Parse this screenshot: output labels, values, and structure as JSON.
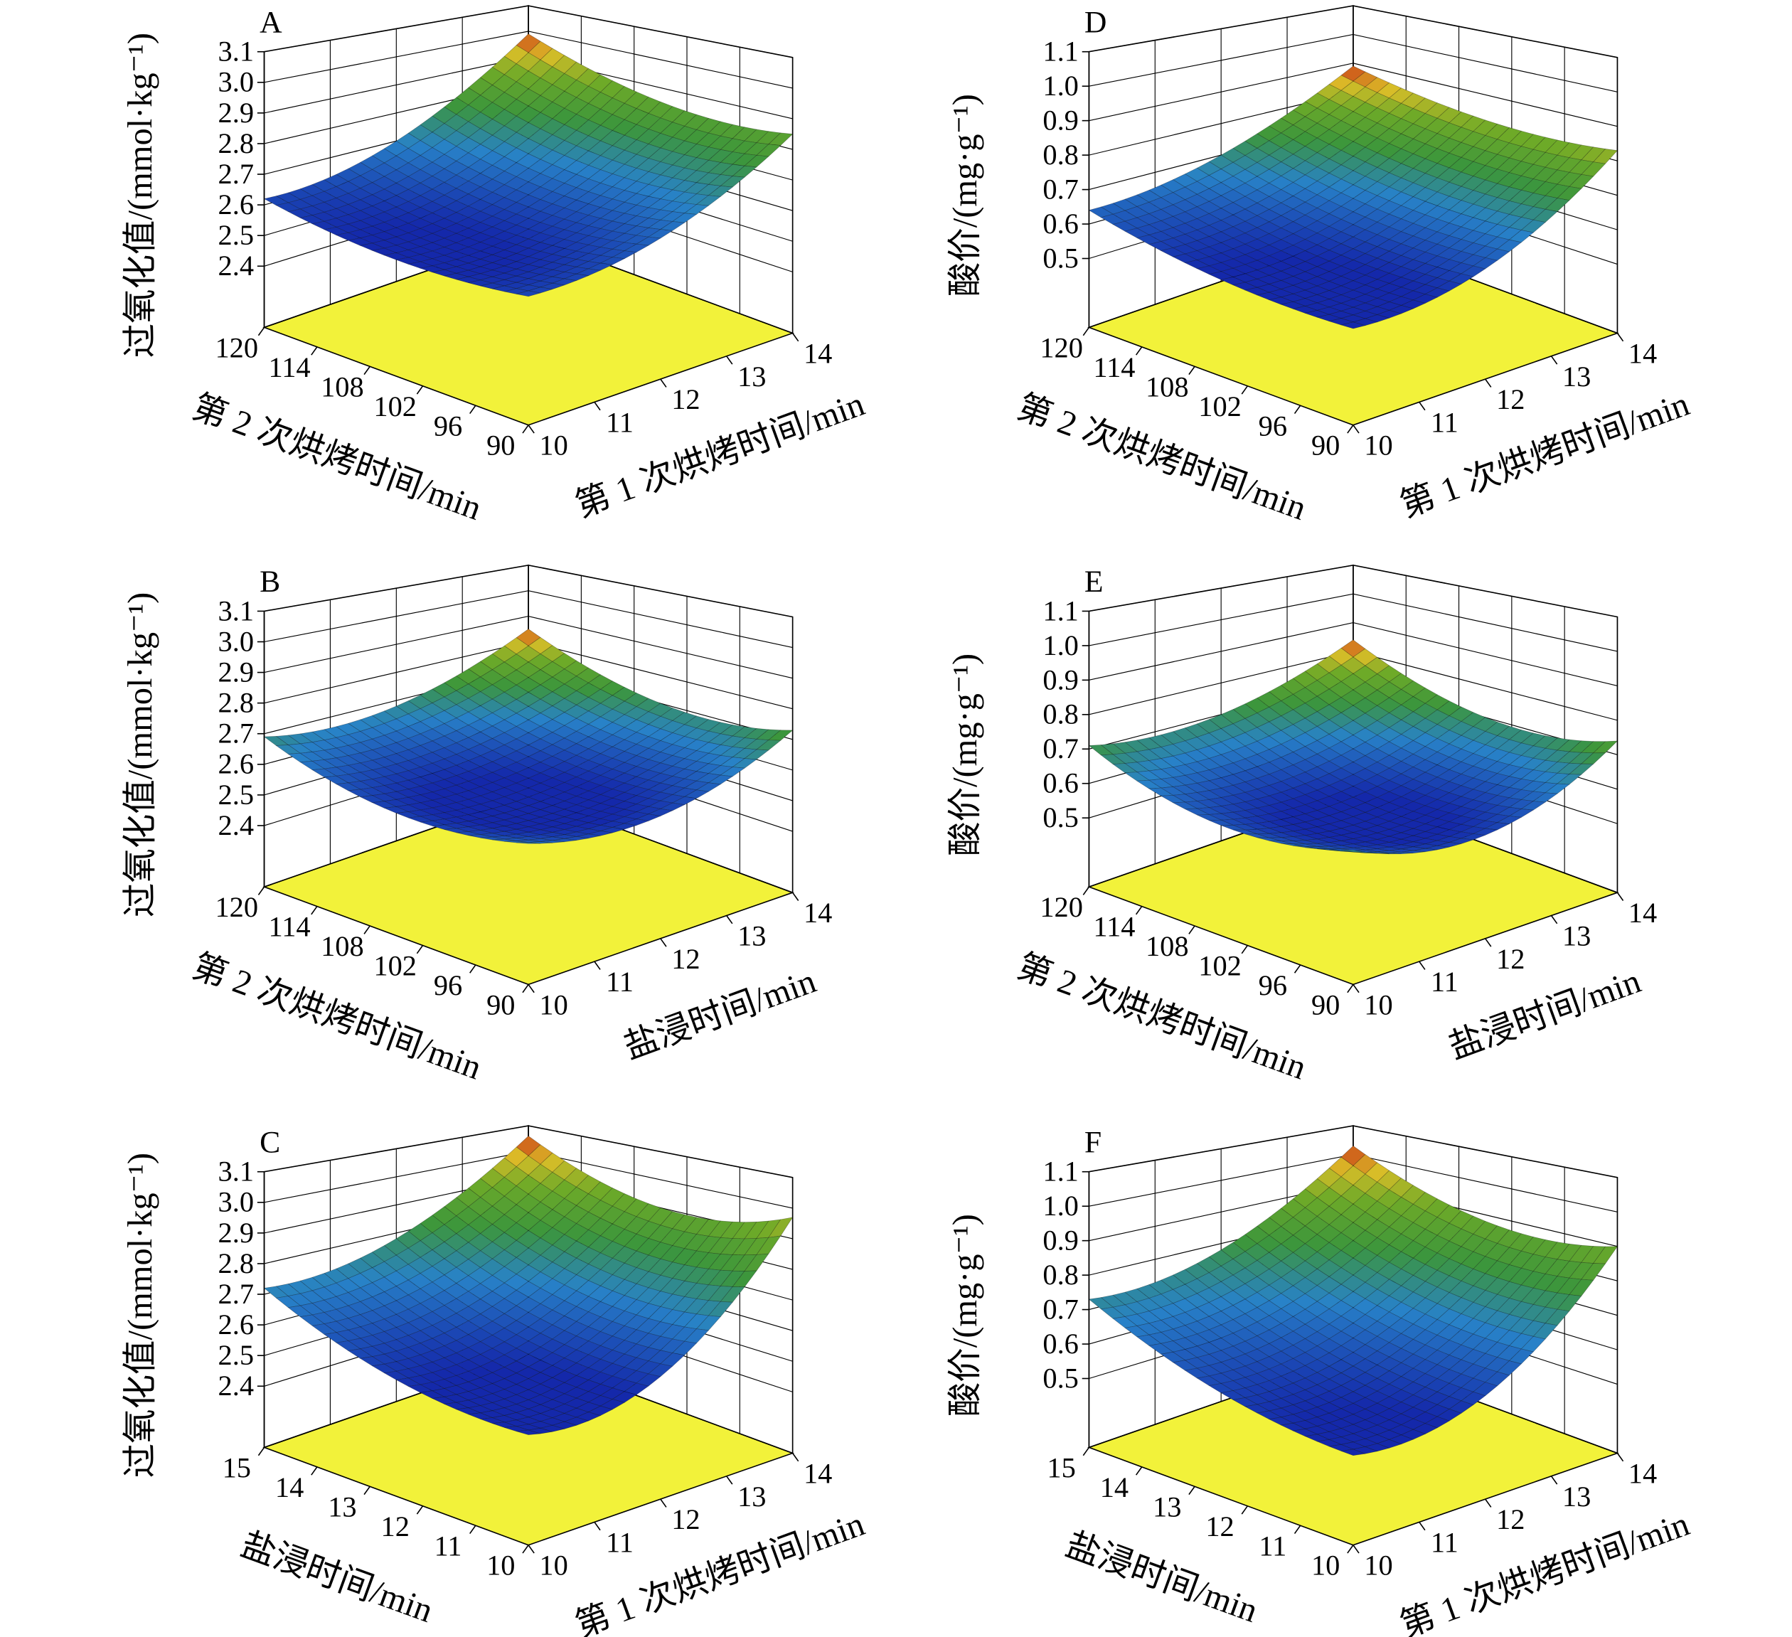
{
  "chart_data": [
    {
      "type": "surface",
      "title": "A",
      "zlabel": "过氧化值/(mmol·kg⁻¹)",
      "xlabel": "第 1 次烘烤时间/min",
      "ylabel": "第 2 次烘烤时间/min",
      "x": [
        10,
        12,
        14
      ],
      "y": [
        90,
        105,
        120
      ],
      "z": [
        [
          2.62,
          2.66,
          2.85
        ],
        [
          2.58,
          2.62,
          2.85
        ],
        [
          2.62,
          2.7,
          2.99
        ]
      ],
      "xlim": [
        10,
        14
      ],
      "xticks": [
        10,
        11,
        12,
        13,
        14
      ],
      "ylim": [
        90,
        120
      ],
      "yticks": [
        90,
        96,
        102,
        108,
        114,
        120
      ],
      "zlim": [
        2.2,
        3.1
      ],
      "zticks": [
        2.4,
        2.5,
        2.6,
        2.7,
        2.8,
        2.9,
        {
          "value": 3,
          "label": "3.0"
        },
        3.1
      ],
      "floor_color": "#f2f23a"
    },
    {
      "type": "surface",
      "title": "B",
      "zlabel": "过氧化值/(mmol·kg⁻¹)",
      "xlabel": "盐浸时间/min",
      "ylabel": "第 2 次烘烤时间/min",
      "x": [
        10,
        12,
        14
      ],
      "y": [
        90,
        105,
        120
      ],
      "z": [
        [
          2.66,
          2.6,
          2.73
        ],
        [
          2.6,
          2.58,
          2.7
        ],
        [
          2.69,
          2.68,
          2.85
        ]
      ],
      "xlim": [
        10,
        14
      ],
      "xticks": [
        10,
        11,
        12,
        13,
        14
      ],
      "ylim": [
        90,
        120
      ],
      "yticks": [
        90,
        96,
        102,
        108,
        114,
        120
      ],
      "zlim": [
        2.2,
        3.1
      ],
      "zticks": [
        2.4,
        2.5,
        2.6,
        2.7,
        2.8,
        2.9,
        {
          "value": 3,
          "label": "3.0"
        },
        3.1
      ],
      "floor_color": "#f2f23a"
    },
    {
      "type": "surface",
      "title": "C",
      "zlabel": "过氧化值/(mmol·kg⁻¹)",
      "xlabel": "第 1 次烘烤时间/min",
      "ylabel": "盐浸时间/min",
      "x": [
        10,
        12,
        14
      ],
      "y": [
        10,
        12.5,
        15
      ],
      "z": [
        [
          2.56,
          2.6,
          2.97
        ],
        [
          2.58,
          2.62,
          2.9
        ],
        [
          2.72,
          2.78,
          3.06
        ]
      ],
      "xlim": [
        10,
        14
      ],
      "xticks": [
        10,
        11,
        12,
        13,
        14
      ],
      "ylim": [
        10,
        15
      ],
      "yticks": [
        10,
        11,
        12,
        13,
        14,
        15
      ],
      "zlim": [
        2.2,
        3.1
      ],
      "zticks": [
        2.4,
        2.5,
        2.6,
        2.7,
        2.8,
        2.9,
        {
          "value": 3,
          "label": "3.0"
        },
        3.1
      ],
      "floor_color": "#f2f23a"
    },
    {
      "type": "surface",
      "title": "D",
      "zlabel": "酸价/(mg·g⁻¹)",
      "xlabel": "第 1 次烘烤时间/min",
      "ylabel": "第 2 次烘烤时间/min",
      "x": [
        10,
        12,
        14
      ],
      "y": [
        90,
        105,
        120
      ],
      "z": [
        [
          0.58,
          0.62,
          0.83
        ],
        [
          0.58,
          0.62,
          0.82
        ],
        [
          0.64,
          0.7,
          0.89
        ]
      ],
      "xlim": [
        10,
        14
      ],
      "xticks": [
        10,
        11,
        12,
        13,
        14
      ],
      "ylim": [
        90,
        120
      ],
      "yticks": [
        90,
        96,
        102,
        108,
        114,
        120
      ],
      "zlim": [
        0.3,
        1.1
      ],
      "zticks": [
        0.5,
        0.6,
        0.7,
        0.8,
        0.9,
        {
          "value": 1,
          "label": "1.0"
        },
        1.1
      ],
      "floor_color": "#f2f23a"
    },
    {
      "type": "surface",
      "title": "E",
      "zlabel": "酸价/(mg·g⁻¹)",
      "xlabel": "盐浸时间/min",
      "ylabel": "第 2 次烘烤时间/min",
      "x": [
        10,
        12,
        14
      ],
      "y": [
        90,
        105,
        120
      ],
      "z": [
        [
          0.69,
          0.6,
          0.74
        ],
        [
          0.62,
          0.58,
          0.7
        ],
        [
          0.71,
          0.7,
          0.84
        ]
      ],
      "xlim": [
        10,
        14
      ],
      "xticks": [
        10,
        11,
        12,
        13,
        14
      ],
      "ylim": [
        90,
        120
      ],
      "yticks": [
        90,
        96,
        102,
        108,
        114,
        120
      ],
      "zlim": [
        0.3,
        1.1
      ],
      "zticks": [
        0.5,
        0.6,
        0.7,
        0.8,
        0.9,
        {
          "value": 1,
          "label": "1.0"
        },
        1.1
      ],
      "floor_color": "#f2f23a"
    },
    {
      "type": "surface",
      "title": "F",
      "zlabel": "酸价/(mg·g⁻¹)",
      "xlabel": "第 1 次烘烤时间/min",
      "ylabel": "盐浸时间/min",
      "x": [
        10,
        12,
        14
      ],
      "y": [
        10,
        12.5,
        15
      ],
      "z": [
        [
          0.56,
          0.6,
          0.9
        ],
        [
          0.6,
          0.64,
          0.88
        ],
        [
          0.73,
          0.78,
          1.03
        ]
      ],
      "xlim": [
        10,
        14
      ],
      "xticks": [
        10,
        11,
        12,
        13,
        14
      ],
      "ylim": [
        10,
        15
      ],
      "yticks": [
        10,
        11,
        12,
        13,
        14,
        15
      ],
      "zlim": [
        0.3,
        1.1
      ],
      "zticks": [
        0.5,
        0.6,
        0.7,
        0.8,
        0.9,
        {
          "value": 1,
          "label": "1.0"
        },
        1.1
      ],
      "floor_color": "#f2f23a"
    }
  ]
}
